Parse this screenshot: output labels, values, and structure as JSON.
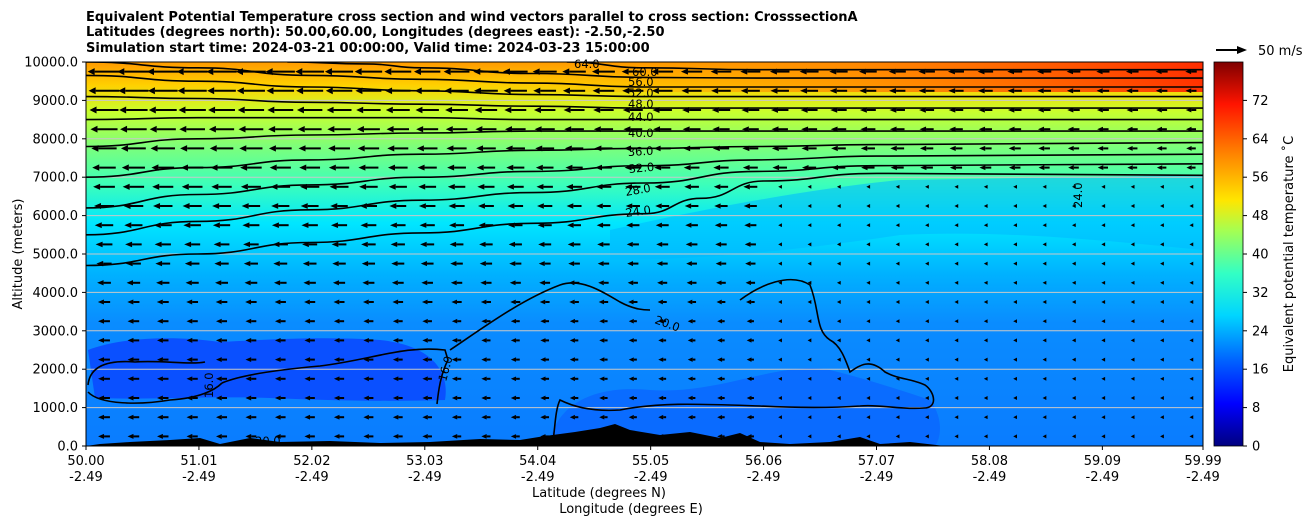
{
  "chart_data": {
    "type": "heatmap",
    "title_lines": [
      "Equivalent Potential Temperature cross section and wind vectors parallel to cross section: CrosssectionA",
      "Latitudes (degrees north): 50.00,60.00, Longitudes (degrees east): -2.50,-2.50",
      "Simulation start time: 2024-03-21 00:00:00, Valid time: 2024-03-23 15:00:00"
    ],
    "ylabel": "Altitude (meters)",
    "xlabel_lines": [
      "Latitude (degrees N)",
      "Longitude (degrees E)"
    ],
    "ylim": [
      0,
      10000
    ],
    "yticks": [
      "0.0",
      "1000.0",
      "2000.0",
      "3000.0",
      "4000.0",
      "5000.0",
      "6000.0",
      "7000.0",
      "8000.0",
      "9000.0",
      "10000.0"
    ],
    "xlim": [
      50.0,
      59.99
    ],
    "xticks_lat": [
      "50.00",
      "51.01",
      "52.02",
      "53.03",
      "54.04",
      "55.05",
      "56.06",
      "57.07",
      "58.08",
      "59.09",
      "59.99"
    ],
    "xticks_lon": [
      "-2.49",
      "-2.49",
      "-2.49",
      "-2.49",
      "-2.49",
      "-2.49",
      "-2.49",
      "-2.49",
      "-2.49",
      "-2.49",
      "-2.49"
    ],
    "colorbar": {
      "label": "Equivalent potential temperature ˚C",
      "range": [
        0,
        80
      ],
      "ticks": [
        "0",
        "8",
        "16",
        "24",
        "32",
        "40",
        "48",
        "56",
        "64",
        "72"
      ],
      "colormap": "jet"
    },
    "quiver_key": "50 m/s",
    "contour_levels": [
      16,
      20,
      24,
      28,
      32,
      36,
      40,
      44,
      48,
      52,
      56,
      60,
      64,
      68
    ],
    "contour_labels": [
      "16.0",
      "20.0",
      "24.0",
      "28.0",
      "32.0",
      "36.0",
      "40.0",
      "44.0",
      "48.0",
      "52.0",
      "56.0",
      "60.0",
      "64.0",
      "68.0"
    ],
    "contours": [
      {
        "level": 24,
        "x": [
          50.0,
          51.0,
          52.0,
          53.0,
          54.0,
          55.0,
          55.5,
          56.06,
          57.07,
          59.99
        ],
        "y": [
          4700,
          5000,
          5300,
          5550,
          5800,
          6050,
          6450,
          6900,
          7100,
          7050
        ]
      },
      {
        "level": 28,
        "x": [
          50.0,
          51.0,
          52.0,
          53.0,
          54.0,
          55.0,
          56.0,
          57.07,
          59.99
        ],
        "y": [
          5500,
          5850,
          6150,
          6400,
          6600,
          6850,
          7150,
          7300,
          7350
        ]
      },
      {
        "level": 32,
        "x": [
          50.0,
          51.0,
          52.0,
          53.0,
          54.0,
          55.0,
          56.0,
          57.07,
          59.99
        ],
        "y": [
          6200,
          6550,
          6800,
          7000,
          7150,
          7300,
          7450,
          7550,
          7600
        ]
      },
      {
        "level": 36,
        "x": [
          50.0,
          51.0,
          52.0,
          53.0,
          54.0,
          55.0,
          56.0,
          57.07,
          59.99
        ],
        "y": [
          7000,
          7250,
          7450,
          7600,
          7700,
          7750,
          7800,
          7850,
          7900
        ]
      },
      {
        "level": 40,
        "x": [
          50.0,
          51.0,
          52.0,
          53.0,
          54.0,
          55.0,
          56.0,
          57.07,
          59.99
        ],
        "y": [
          7800,
          8000,
          8100,
          8150,
          8200,
          8200,
          8200,
          8200,
          8200
        ]
      },
      {
        "level": 44,
        "x": [
          50.0,
          51.0,
          52.0,
          53.0,
          54.0,
          55.0,
          56.0,
          57.07,
          59.99
        ],
        "y": [
          8500,
          8550,
          8550,
          8550,
          8500,
          8500,
          8500,
          8500,
          8500
        ]
      },
      {
        "level": 48,
        "x": [
          50.0,
          51.0,
          52.0,
          53.0,
          54.0,
          55.0,
          56.0,
          57.07,
          59.99
        ],
        "y": [
          9100,
          9050,
          8950,
          8900,
          8850,
          8800,
          8800,
          8800,
          8800
        ]
      },
      {
        "level": 52,
        "x": [
          50.0,
          51.0,
          52.0,
          53.0,
          54.0,
          55.0,
          56.0,
          57.07,
          59.99
        ],
        "y": [
          9650,
          9500,
          9350,
          9250,
          9150,
          9100,
          9100,
          9100,
          9100
        ]
      },
      {
        "level": 56,
        "x": [
          50.0,
          51.0,
          52.0,
          53.0,
          54.0,
          55.0,
          56.0,
          57.07,
          59.99
        ],
        "y": [
          10000,
          9850,
          9650,
          9550,
          9450,
          9350,
          9350,
          9350,
          9350
        ]
      },
      {
        "level": 60,
        "x": [
          51.8,
          52.5,
          53.0,
          54.0,
          55.0,
          56.0,
          57.07,
          59.99
        ],
        "y": [
          10000,
          9950,
          9850,
          9700,
          9600,
          9580,
          9580,
          9580
        ]
      },
      {
        "level": 64,
        "x": [
          54.3,
          55.0,
          56.0,
          57.07,
          59.99
        ],
        "y": [
          10000,
          9850,
          9800,
          9800,
          9800
        ]
      }
    ],
    "ridge": "orography along cross section, maximum about 500 m near 55.0 N",
    "field_note": "warm 48-72 C aloft above 8500 m, cooling to 16-24 C below 4000 m; cold pools near 14-16 C at 1000-2000 m between 50.0 and 53.0 N"
  }
}
